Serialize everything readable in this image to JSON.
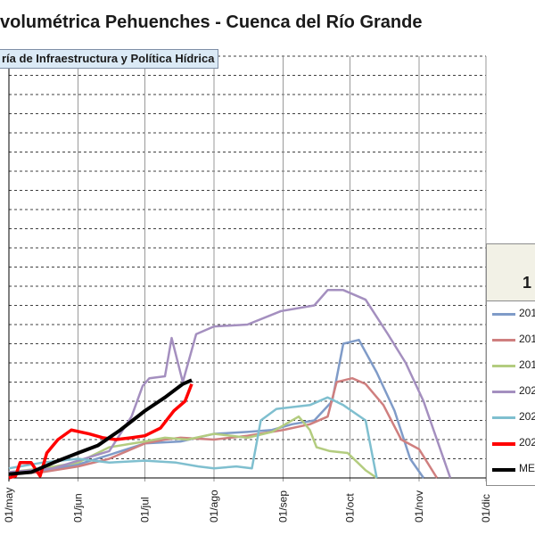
{
  "title": "volumétrica Pehuenches - Cuenca del Río Grande",
  "subtitle": "ría de Infraestructura y Política Hídrica",
  "legend": {
    "header": "1",
    "entries": [
      {
        "label": "201",
        "color": "#7f9bc8"
      },
      {
        "label": "201",
        "color": "#cf7f7f"
      },
      {
        "label": "201",
        "color": "#b3cc7f"
      },
      {
        "label": "202",
        "color": "#a48fbf"
      },
      {
        "label": "202",
        "color": "#7fbfcf"
      },
      {
        "label": "202",
        "color": "#ff0000"
      },
      {
        "label": "MEI",
        "color": "#000000"
      }
    ]
  },
  "chart_data": {
    "type": "line",
    "x_ticks": [
      "01/may",
      "01/jun",
      "01/jul",
      "01/ago",
      "01/sep",
      "01/oct",
      "01/nov",
      "01/dic"
    ],
    "grid": true,
    "series": [
      {
        "name": "201",
        "color": "#7f9bc8",
        "width": 2.5,
        "points": [
          [
            0,
            0.3
          ],
          [
            15,
            0.4
          ],
          [
            31,
            0.7
          ],
          [
            45,
            1.2
          ],
          [
            61,
            1.8
          ],
          [
            77,
            1.9
          ],
          [
            92,
            2.3
          ],
          [
            107,
            2.4
          ],
          [
            118,
            2.5
          ],
          [
            127,
            2.8
          ],
          [
            137,
            3.0
          ],
          [
            145,
            4.0
          ],
          [
            150,
            7.0
          ],
          [
            157,
            7.2
          ],
          [
            165,
            5.5
          ],
          [
            173,
            3.5
          ],
          [
            180,
            1.0
          ],
          [
            186,
            0.0
          ]
        ]
      },
      {
        "name": "201",
        "color": "#cf7f7f",
        "width": 2.5,
        "points": [
          [
            0,
            0.2
          ],
          [
            15,
            0.3
          ],
          [
            31,
            0.6
          ],
          [
            45,
            1.0
          ],
          [
            61,
            1.8
          ],
          [
            70,
            2.0
          ],
          [
            77,
            2.1
          ],
          [
            92,
            2.0
          ],
          [
            107,
            2.2
          ],
          [
            123,
            2.5
          ],
          [
            135,
            2.8
          ],
          [
            143,
            3.2
          ],
          [
            147,
            5.0
          ],
          [
            154,
            5.2
          ],
          [
            160,
            4.9
          ],
          [
            168,
            3.8
          ],
          [
            176,
            2.0
          ],
          [
            184,
            1.5
          ],
          [
            192,
            0.0
          ]
        ]
      },
      {
        "name": "201",
        "color": "#b3cc7f",
        "width": 2.5,
        "points": [
          [
            0,
            0.3
          ],
          [
            15,
            0.5
          ],
          [
            31,
            0.8
          ],
          [
            45,
            1.6
          ],
          [
            61,
            1.9
          ],
          [
            70,
            2.1
          ],
          [
            80,
            2.0
          ],
          [
            92,
            2.3
          ],
          [
            107,
            2.1
          ],
          [
            118,
            2.4
          ],
          [
            130,
            3.2
          ],
          [
            135,
            2.5
          ],
          [
            138,
            1.6
          ],
          [
            144,
            1.4
          ],
          [
            152,
            1.3
          ],
          [
            160,
            0.4
          ],
          [
            165,
            0.0
          ]
        ]
      },
      {
        "name": "202",
        "color": "#a48fbf",
        "width": 2.5,
        "points": [
          [
            0,
            0.3
          ],
          [
            20,
            0.5
          ],
          [
            31,
            0.9
          ],
          [
            45,
            1.4
          ],
          [
            55,
            3.2
          ],
          [
            60,
            4.8
          ],
          [
            63,
            5.2
          ],
          [
            70,
            5.3
          ],
          [
            73,
            7.3
          ],
          [
            78,
            5.0
          ],
          [
            84,
            7.5
          ],
          [
            92,
            7.9
          ],
          [
            107,
            8.0
          ],
          [
            122,
            8.7
          ],
          [
            137,
            9.0
          ],
          [
            143,
            9.8
          ],
          [
            150,
            9.8
          ],
          [
            160,
            9.3
          ],
          [
            170,
            7.5
          ],
          [
            178,
            6.0
          ],
          [
            186,
            4.0
          ],
          [
            192,
            2.0
          ],
          [
            198,
            0.0
          ]
        ]
      },
      {
        "name": "202",
        "color": "#7fbfcf",
        "width": 2.5,
        "points": [
          [
            0,
            0.5
          ],
          [
            15,
            0.8
          ],
          [
            31,
            1.0
          ],
          [
            45,
            0.8
          ],
          [
            61,
            0.9
          ],
          [
            75,
            0.8
          ],
          [
            85,
            0.6
          ],
          [
            92,
            0.5
          ],
          [
            102,
            0.6
          ],
          [
            109,
            0.5
          ],
          [
            113,
            3.0
          ],
          [
            120,
            3.6
          ],
          [
            135,
            3.8
          ],
          [
            143,
            4.2
          ],
          [
            150,
            3.8
          ],
          [
            160,
            3.0
          ],
          [
            165,
            0.0
          ]
        ]
      },
      {
        "name": "202",
        "color": "#ff0000",
        "width": 3.5,
        "points": [
          [
            0,
            0.0
          ],
          [
            3,
            0.1
          ],
          [
            5,
            0.8
          ],
          [
            10,
            0.8
          ],
          [
            14,
            0.1
          ],
          [
            17,
            1.3
          ],
          [
            22,
            2.0
          ],
          [
            28,
            2.5
          ],
          [
            36,
            2.3
          ],
          [
            42,
            2.1
          ],
          [
            48,
            2.0
          ],
          [
            55,
            2.1
          ],
          [
            61,
            2.2
          ],
          [
            68,
            2.6
          ],
          [
            74,
            3.5
          ],
          [
            79,
            4.0
          ],
          [
            82,
            4.9
          ]
        ]
      },
      {
        "name": "MEI",
        "color": "#000000",
        "width": 4,
        "points": [
          [
            0,
            0.2
          ],
          [
            10,
            0.3
          ],
          [
            20,
            0.8
          ],
          [
            31,
            1.3
          ],
          [
            40,
            1.7
          ],
          [
            50,
            2.5
          ],
          [
            61,
            3.5
          ],
          [
            70,
            4.2
          ],
          [
            78,
            4.9
          ],
          [
            82,
            5.1
          ]
        ]
      }
    ]
  }
}
